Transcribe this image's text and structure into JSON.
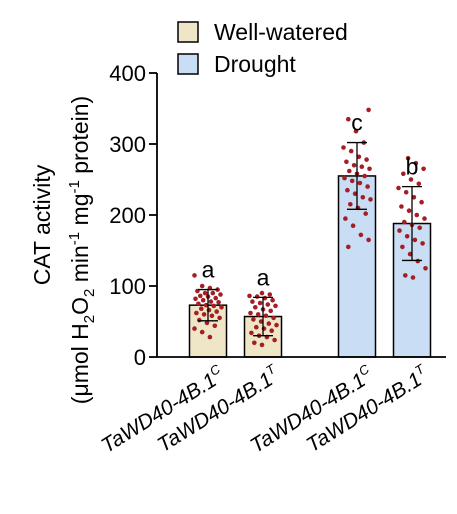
{
  "chart_data": {
    "type": "bar",
    "ylabel_line1": "CAT activity",
    "ylabel_line2": {
      "open": "(μmol H",
      "sub1": "2",
      "mid1": "O",
      "sub2": "2",
      "mid2": " min",
      "sup1": "-1",
      "mid3": " mg",
      "sup2": "-1",
      "close": " protein)"
    },
    "ylim": [
      0,
      400
    ],
    "yticks": [
      "0",
      "100",
      "200",
      "300",
      "400"
    ],
    "ytick_values": [
      0,
      100,
      200,
      300,
      400
    ],
    "categories": [
      {
        "base": "TaWD40-4B.1",
        "sup": "C"
      },
      {
        "base": "TaWD40-4B.1",
        "sup": "T"
      },
      {
        "base": "TaWD40-4B.1",
        "sup": "C"
      },
      {
        "base": "TaWD40-4B.1",
        "sup": "T"
      }
    ],
    "legend": {
      "position": "top-center",
      "entries": [
        "Well-watered",
        "Drought"
      ]
    },
    "series_colors": {
      "Well-watered": "#EFE6C8",
      "Drought": "#C9DDF4"
    },
    "dot_color": "#A31F24",
    "bars": [
      {
        "series": "Well-watered",
        "value": 73,
        "error": 22,
        "letter": "a",
        "points": [
          115,
          100,
          97,
          95,
          93,
          90,
          90,
          88,
          86,
          85,
          83,
          82,
          80,
          78,
          77,
          75,
          73,
          72,
          70,
          68,
          66,
          64,
          62,
          60,
          58,
          55,
          52,
          48,
          44,
          40,
          35,
          28
        ]
      },
      {
        "series": "Well-watered",
        "value": 57,
        "error": 27,
        "letter": "a",
        "points": [
          90,
          88,
          86,
          85,
          83,
          80,
          78,
          76,
          74,
          72,
          70,
          67,
          65,
          62,
          60,
          58,
          55,
          53,
          50,
          47,
          45,
          42,
          40,
          37,
          34,
          30,
          28,
          24,
          20,
          17
        ]
      },
      {
        "series": "Drought",
        "value": 255,
        "error": 47,
        "letter": "c",
        "points": [
          348,
          335,
          318,
          302,
          295,
          290,
          282,
          278,
          275,
          270,
          268,
          265,
          262,
          258,
          255,
          252,
          248,
          245,
          240,
          235,
          230,
          225,
          222,
          215,
          210,
          202,
          195,
          185,
          172,
          165,
          155
        ]
      },
      {
        "series": "Drought",
        "value": 188,
        "error": 52,
        "letter": "b",
        "points": [
          280,
          273,
          265,
          258,
          250,
          244,
          238,
          232,
          225,
          218,
          212,
          206,
          200,
          195,
          190,
          186,
          182,
          178,
          170,
          165,
          160,
          155,
          145,
          135,
          125,
          115,
          112
        ]
      }
    ]
  }
}
